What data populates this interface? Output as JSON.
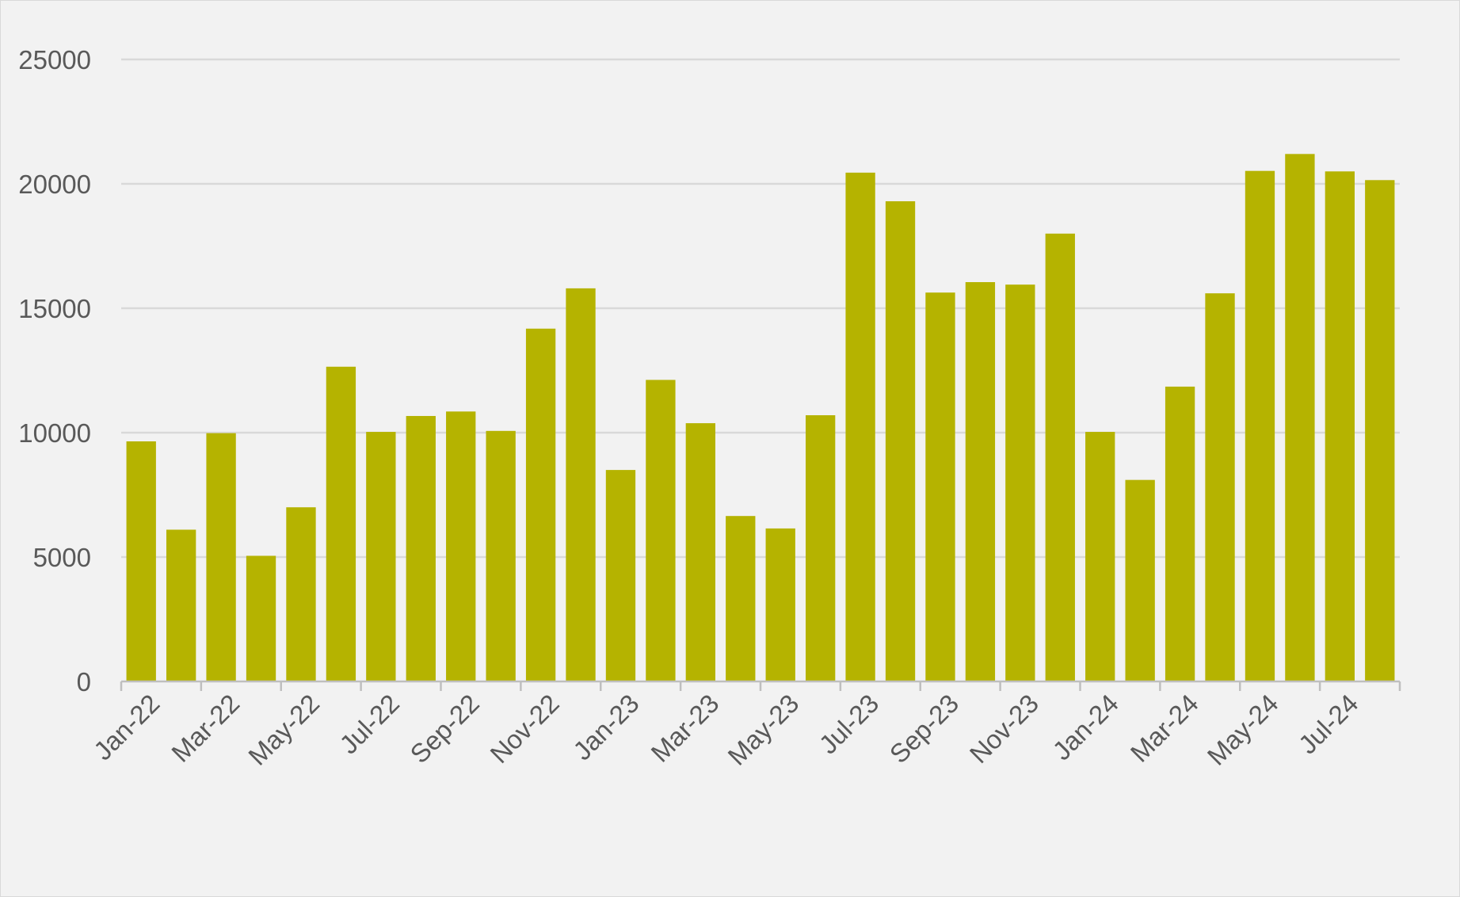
{
  "chart_data": {
    "type": "bar",
    "categories": [
      "Jan-22",
      "Feb-22",
      "Mar-22",
      "Apr-22",
      "May-22",
      "Jun-22",
      "Jul-22",
      "Aug-22",
      "Sep-22",
      "Oct-22",
      "Nov-22",
      "Dec-22",
      "Jan-23",
      "Feb-23",
      "Mar-23",
      "Apr-23",
      "May-23",
      "Jun-23",
      "Jul-23",
      "Aug-23",
      "Sep-23",
      "Oct-23",
      "Nov-23",
      "Dec-23",
      "Jan-24",
      "Feb-24",
      "Mar-24",
      "Apr-24",
      "May-24",
      "Jun-24",
      "Jul-24",
      "Aug-24"
    ],
    "x_tick_labels": [
      "Jan-22",
      "Mar-22",
      "May-22",
      "Jul-22",
      "Sep-22",
      "Nov-22",
      "Jan-23",
      "Mar-23",
      "May-23",
      "Jul-23",
      "Sep-23",
      "Nov-23",
      "Jan-24",
      "Mar-24",
      "May-24",
      "Jul-24"
    ],
    "values": [
      9650,
      6100,
      9980,
      5050,
      7000,
      12650,
      10030,
      10670,
      10850,
      10070,
      14180,
      15800,
      8500,
      12120,
      10380,
      6650,
      6150,
      10700,
      20450,
      19300,
      15630,
      16050,
      15950,
      18000,
      10030,
      8100,
      11850,
      15600,
      20520,
      21200,
      20500,
      20150
    ],
    "y_ticks": [
      "0",
      "5000",
      "10000",
      "15000",
      "20000",
      "25000"
    ],
    "ylim": [
      0,
      25000
    ],
    "title": "",
    "xlabel": "",
    "ylabel": "",
    "grid": true,
    "legend": "none",
    "bar_color": "#b5b300",
    "gridline_color": "#d9d9d9",
    "background_color": "#f2f2f2",
    "axis_color": "#bfbfbf"
  }
}
